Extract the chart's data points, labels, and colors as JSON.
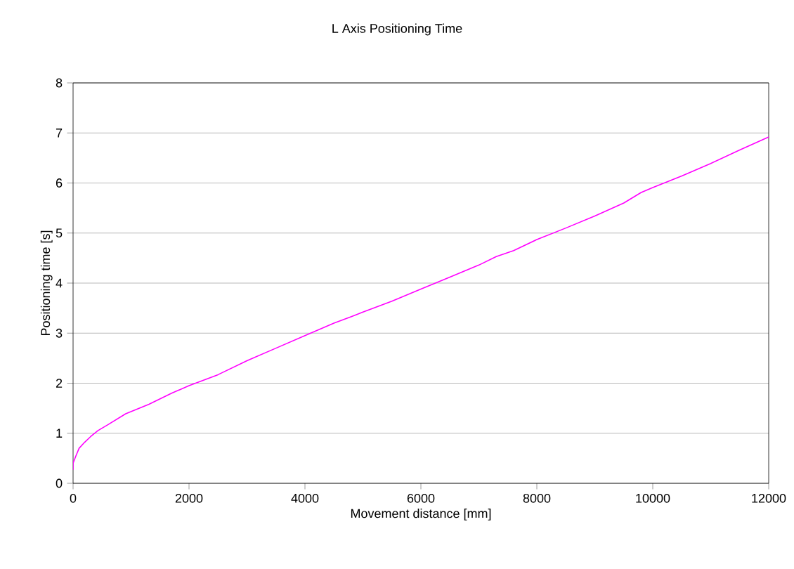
{
  "chart_data": {
    "type": "line",
    "title": "L Axis Positioning Time",
    "xlabel": "Movement distance  [mm]",
    "ylabel": "Positioning time [s]",
    "x": [
      0,
      0,
      50,
      104,
      200,
      300,
      426,
      600,
      908,
      1309,
      1700,
      2000,
      2500,
      3000,
      3500,
      4000,
      4500,
      4800,
      5000,
      5500,
      6000,
      6500,
      7000,
      7300,
      7600,
      8000,
      8500,
      9000,
      9500,
      9800,
      10000,
      10500,
      11000,
      11500,
      12000
    ],
    "series": [
      {
        "color": "#ff00ff",
        "values": [
          0.27,
          0.4,
          0.55,
          0.7,
          0.82,
          0.93,
          1.05,
          1.17,
          1.39,
          1.58,
          1.8,
          1.95,
          2.17,
          2.45,
          2.7,
          2.95,
          3.2,
          3.33,
          3.42,
          3.64,
          3.88,
          4.12,
          4.36,
          4.53,
          4.65,
          4.87,
          5.1,
          5.34,
          5.6,
          5.81,
          5.91,
          6.14,
          6.39,
          6.66,
          6.92
        ]
      }
    ],
    "xlim": [
      0,
      12000
    ],
    "ylim": [
      0,
      8
    ],
    "xticks": [
      0,
      2000,
      4000,
      6000,
      8000,
      10000,
      12000
    ],
    "yticks": [
      0,
      1,
      2,
      3,
      4,
      5,
      6,
      7,
      8
    ],
    "grid": "y",
    "marker": "none",
    "line_style": "solid"
  }
}
